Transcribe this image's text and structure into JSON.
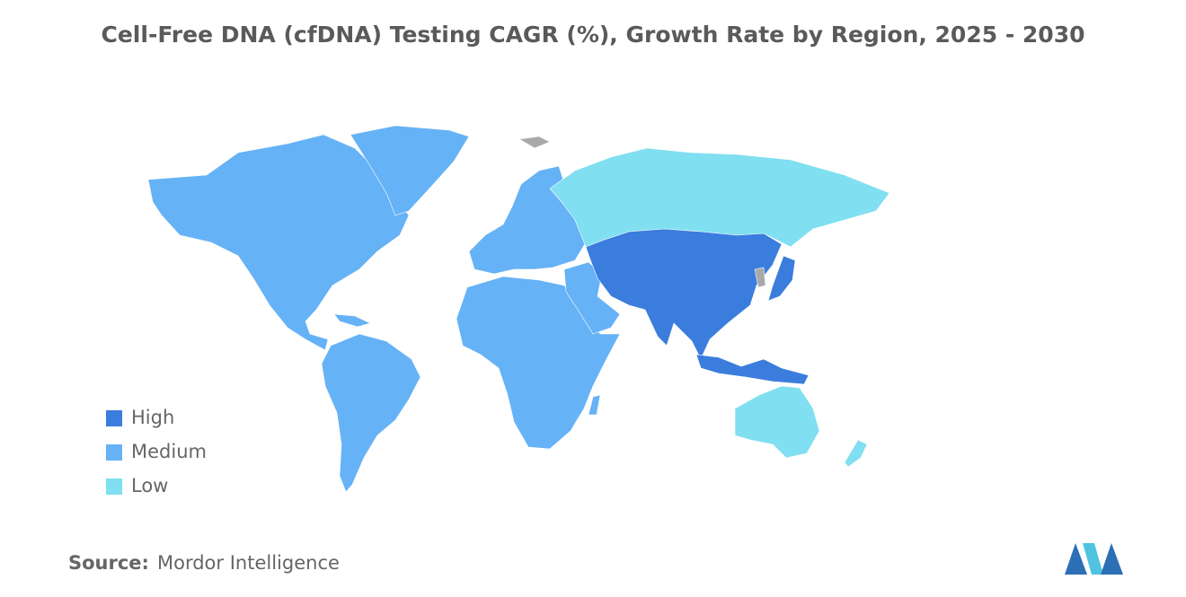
{
  "title": "Cell-Free DNA (cfDNA) Testing CAGR (%), Growth Rate by Region, 2025 - 2030",
  "legend": [
    {
      "label": "High",
      "color": "#3b7ddd"
    },
    {
      "label": "Medium",
      "color": "#66b2f6"
    },
    {
      "label": "Low",
      "color": "#80dff0"
    }
  ],
  "source": {
    "label": "Source:",
    "text": "Mordor Intelligence"
  }
}
